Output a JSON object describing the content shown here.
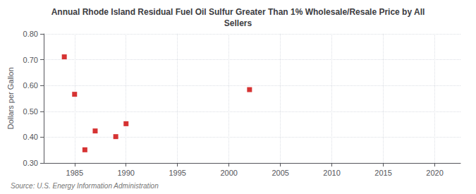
{
  "chart_data": {
    "type": "scatter",
    "title": "Annual Rhode Island Residual Fuel Oil Sulfur Greater Than 1% Wholesale/Resale Price by All\nSellers",
    "ylabel": "Dollars per Gallon",
    "annotations": [
      "Source: U.S. Energy Information Administration"
    ],
    "x": [
      1984,
      1985,
      1986,
      1987,
      1989,
      1990,
      2002
    ],
    "values": [
      0.711,
      0.566,
      0.351,
      0.424,
      0.402,
      0.452,
      0.584
    ],
    "color": "#cc0000",
    "marker": "square",
    "xlim": [
      1982,
      2022.5
    ],
    "ylim": [
      0.3,
      0.8
    ],
    "xticks": [
      1985,
      1990,
      1995,
      2000,
      2005,
      2010,
      2015,
      2020
    ],
    "yticks": [
      {
        "value": 0.3,
        "label": "0.30"
      },
      {
        "value": 0.4,
        "label": "0.40"
      },
      {
        "value": 0.5,
        "label": "0.50"
      },
      {
        "value": 0.6,
        "label": "0.60"
      },
      {
        "value": 0.7,
        "label": "0.70"
      },
      {
        "value": 0.8,
        "label": "0.80"
      }
    ],
    "grid": true
  }
}
